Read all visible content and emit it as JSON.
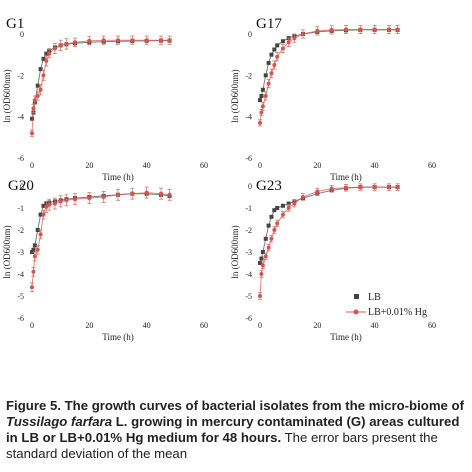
{
  "chart_data": [
    {
      "type": "scatter",
      "title": "G1",
      "xlabel": "Time (h)",
      "ylabel": "ln (OD600nm)",
      "xlim": [
        0,
        60
      ],
      "ylim": [
        -6,
        0
      ],
      "x_ticks": [
        "0",
        "20",
        "40",
        "60"
      ],
      "y_ticks": [
        "0",
        "-2",
        "-4",
        "-6"
      ],
      "series": [
        {
          "name": "LB",
          "color": "#444444",
          "marker": "square",
          "error_bars": false,
          "x": [
            0,
            0.5,
            1,
            2,
            3,
            4,
            5,
            6,
            8,
            10,
            12,
            15,
            20,
            25,
            30,
            35,
            40,
            45,
            48
          ],
          "y": [
            -4.1,
            -3.8,
            -3.3,
            -2.5,
            -1.7,
            -1.2,
            -0.95,
            -0.8,
            -0.65,
            -0.55,
            -0.5,
            -0.45,
            -0.4,
            -0.37,
            -0.35,
            -0.34,
            -0.33,
            -0.32,
            -0.32
          ]
        },
        {
          "name": "LB+0.01% Hg",
          "color": "#d9534f",
          "marker": "circle",
          "error_bars": true,
          "x": [
            0,
            0.5,
            1,
            2,
            3,
            4,
            5,
            6,
            8,
            10,
            12,
            15,
            20,
            25,
            30,
            35,
            40,
            45,
            48
          ],
          "y": [
            -4.8,
            -3.6,
            -3.2,
            -3.0,
            -2.7,
            -2.0,
            -1.3,
            -0.95,
            -0.7,
            -0.55,
            -0.48,
            -0.4,
            -0.33,
            -0.3,
            -0.3,
            -0.3,
            -0.3,
            -0.3,
            -0.3
          ],
          "err": [
            0.15,
            0.2,
            0.2,
            0.2,
            0.25,
            0.25,
            0.25,
            0.2,
            0.25,
            0.25,
            0.25,
            0.2,
            0.2,
            0.2,
            0.2,
            0.2,
            0.2,
            0.2,
            0.2
          ]
        }
      ]
    },
    {
      "type": "scatter",
      "title": "G17",
      "xlabel": "Time (h)",
      "ylabel": "ln (OD600nm)",
      "xlim": [
        0,
        60
      ],
      "ylim": [
        -6,
        0
      ],
      "x_ticks": [
        "0",
        "20",
        "40",
        "60"
      ],
      "y_ticks": [
        "0",
        "-2",
        "-4",
        "-6"
      ],
      "series": [
        {
          "name": "LB",
          "color": "#444444",
          "marker": "square",
          "error_bars": false,
          "x": [
            0,
            0.5,
            1,
            2,
            3,
            4,
            5,
            6,
            8,
            10,
            12,
            15,
            20,
            25,
            30,
            35,
            40,
            45,
            48
          ],
          "y": [
            -3.2,
            -3.0,
            -2.7,
            -2.0,
            -1.4,
            -1.0,
            -0.75,
            -0.55,
            -0.35,
            -0.2,
            -0.1,
            0.0,
            0.1,
            0.15,
            0.18,
            0.2,
            0.2,
            0.2,
            0.2
          ]
        },
        {
          "name": "LB+0.01% Hg",
          "color": "#d9534f",
          "marker": "circle",
          "error_bars": true,
          "x": [
            0,
            0.5,
            1,
            2,
            3,
            4,
            5,
            6,
            8,
            10,
            12,
            15,
            20,
            25,
            30,
            35,
            40,
            45,
            48
          ],
          "y": [
            -4.3,
            -3.8,
            -3.5,
            -3.0,
            -2.4,
            -1.9,
            -1.5,
            -1.1,
            -0.7,
            -0.4,
            -0.2,
            0.0,
            0.15,
            0.2,
            0.22,
            0.22,
            0.22,
            0.22,
            0.22
          ],
          "err": [
            0.15,
            0.15,
            0.2,
            0.2,
            0.2,
            0.2,
            0.2,
            0.2,
            0.2,
            0.2,
            0.2,
            0.2,
            0.2,
            0.2,
            0.2,
            0.2,
            0.2,
            0.2,
            0.2
          ]
        }
      ]
    },
    {
      "type": "scatter",
      "title": "G20",
      "xlabel": "Time (h)",
      "ylabel": "ln (OD600nm)",
      "xlim": [
        0,
        60
      ],
      "ylim": [
        -6,
        0
      ],
      "x_ticks": [
        "0",
        "20",
        "40",
        "60"
      ],
      "y_ticks": [
        "0",
        "-1",
        "-2",
        "-3",
        "-4",
        "-5",
        "-6"
      ],
      "series": [
        {
          "name": "LB",
          "color": "#444444",
          "marker": "square",
          "error_bars": false,
          "x": [
            0,
            0.5,
            1,
            2,
            3,
            4,
            5,
            6,
            8,
            10,
            12,
            15,
            20,
            25,
            30,
            35,
            40,
            45,
            48
          ],
          "y": [
            -3.0,
            -2.9,
            -2.7,
            -2.0,
            -1.3,
            -0.9,
            -0.8,
            -0.75,
            -0.7,
            -0.65,
            -0.6,
            -0.55,
            -0.5,
            -0.45,
            -0.4,
            -0.35,
            -0.35,
            -0.4,
            -0.45
          ]
        },
        {
          "name": "LB+0.01% Hg",
          "color": "#d9534f",
          "marker": "circle",
          "error_bars": true,
          "x": [
            0,
            0.5,
            1,
            2,
            3,
            4,
            5,
            6,
            8,
            10,
            12,
            15,
            20,
            25,
            30,
            35,
            40,
            45,
            48
          ],
          "y": [
            -4.6,
            -3.9,
            -3.2,
            -2.9,
            -2.2,
            -1.3,
            -0.95,
            -0.85,
            -0.8,
            -0.7,
            -0.65,
            -0.6,
            -0.55,
            -0.5,
            -0.4,
            -0.35,
            -0.3,
            -0.35,
            -0.4
          ],
          "err": [
            0.2,
            0.2,
            0.2,
            0.2,
            0.2,
            0.2,
            0.25,
            0.25,
            0.25,
            0.25,
            0.25,
            0.25,
            0.25,
            0.25,
            0.25,
            0.25,
            0.25,
            0.25,
            0.25
          ]
        }
      ]
    },
    {
      "type": "scatter",
      "title": "G23",
      "xlabel": "Time (h)",
      "ylabel": "ln (OD600nm)",
      "xlim": [
        0,
        60
      ],
      "ylim": [
        -6,
        0
      ],
      "x_ticks": [
        "0",
        "20",
        "40",
        "60"
      ],
      "y_ticks": [
        "0",
        "-1",
        "-2",
        "-3",
        "-4",
        "-5",
        "-6"
      ],
      "series": [
        {
          "name": "LB",
          "color": "#444444",
          "marker": "square",
          "error_bars": false,
          "x": [
            0,
            0.5,
            1,
            2,
            3,
            4,
            5,
            6,
            8,
            10,
            12,
            15,
            20,
            25,
            30,
            35,
            40,
            45,
            48
          ],
          "y": [
            -3.5,
            -3.3,
            -3.0,
            -2.4,
            -1.8,
            -1.4,
            -1.1,
            -1.0,
            -0.9,
            -0.8,
            -0.7,
            -0.55,
            -0.35,
            -0.2,
            -0.1,
            -0.05,
            -0.05,
            -0.05,
            -0.05
          ]
        },
        {
          "name": "LB+0.01% Hg",
          "color": "#d9534f",
          "marker": "circle",
          "error_bars": true,
          "x": [
            0,
            0.5,
            1,
            2,
            3,
            4,
            5,
            6,
            8,
            10,
            12,
            15,
            20,
            25,
            30,
            35,
            40,
            45,
            48
          ],
          "y": [
            -5.0,
            -4.0,
            -3.6,
            -3.2,
            -2.8,
            -2.4,
            -2.0,
            -1.7,
            -1.3,
            -1.0,
            -0.8,
            -0.5,
            -0.25,
            -0.12,
            -0.08,
            -0.05,
            -0.05,
            -0.05,
            -0.05
          ],
          "err": [
            0.15,
            0.15,
            0.15,
            0.15,
            0.15,
            0.15,
            0.15,
            0.15,
            0.15,
            0.15,
            0.15,
            0.15,
            0.15,
            0.15,
            0.15,
            0.15,
            0.15,
            0.15,
            0.15
          ]
        }
      ]
    }
  ],
  "legend": {
    "lb": "LB",
    "hg": "LB+0.01% Hg"
  },
  "caption": {
    "bold": "Figure 5. The growth curves of bacterial isolates from the micro-biome of ",
    "italic": "Tussilago farfara",
    "bold_after": " L. growing in mercury contaminated (G) areas cultured in LB or LB+0.01% Hg medium for 48 hours.",
    "normal": " The error bars present the standard deviation of the mean"
  }
}
